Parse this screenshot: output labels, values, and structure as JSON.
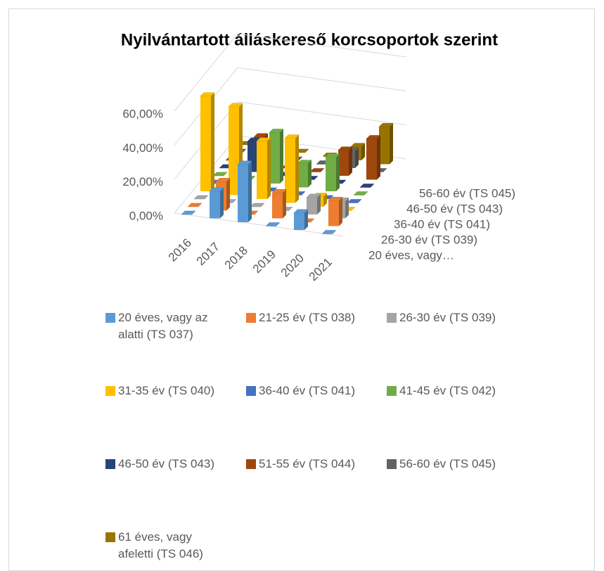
{
  "chart_data": {
    "type": "bar3d",
    "title": "Nyilvántartott álláskereső korcsoportok szerint",
    "categories": [
      "2016",
      "2017",
      "2018",
      "2019",
      "2020",
      "2021"
    ],
    "ylim": [
      0,
      60
    ],
    "yticks": [
      {
        "value": 0,
        "label": "0,00%"
      },
      {
        "value": 20,
        "label": "20,00%"
      },
      {
        "value": 40,
        "label": "40,00%"
      },
      {
        "value": 60,
        "label": "60,00%"
      }
    ],
    "grid": true,
    "depth_axis_labels": [
      "20 éves, vagy…",
      "26-30 év (TS 039)",
      "36-40 év (TS 041)",
      "46-50 év (TS 043)",
      "56-60 év (TS 045)"
    ],
    "legend": "bottom",
    "series": [
      {
        "name": "20 éves, vagy az alatti (TS 037)",
        "color": "#5b9bd5",
        "values": [
          0,
          16,
          34,
          0,
          10,
          0
        ]
      },
      {
        "name": "21-25 év (TS 038)",
        "color": "#ed7d31",
        "values": [
          0,
          17,
          0,
          15,
          0,
          15
        ]
      },
      {
        "name": "26-30 év (TS 039)",
        "color": "#a5a5a5",
        "values": [
          0,
          0,
          0,
          0,
          10,
          10
        ]
      },
      {
        "name": "31-35 év (TS 040)",
        "color": "#ffc000",
        "values": [
          56,
          52,
          34,
          38,
          6,
          0
        ]
      },
      {
        "name": "36-40 év (TS 041)",
        "color": "#4472c4",
        "values": [
          0,
          0,
          0,
          0,
          0,
          0
        ]
      },
      {
        "name": "41-45 év (TS 042)",
        "color": "#70ad47",
        "values": [
          0,
          0,
          30,
          14,
          20,
          0
        ]
      },
      {
        "name": "46-50 év (TS 043)",
        "color": "#264478",
        "values": [
          0,
          18,
          0,
          0,
          0,
          0
        ]
      },
      {
        "name": "51-55 év (TS 044)",
        "color": "#9e480e",
        "values": [
          0,
          16,
          0,
          0,
          15,
          24
        ]
      },
      {
        "name": "56-60 év (TS 045)",
        "color": "#636363",
        "values": [
          0,
          0,
          0,
          0,
          10,
          0
        ]
      },
      {
        "name": "61 éves, vagy afeletti (TS 046)",
        "color": "#997300",
        "values": [
          0,
          0,
          0,
          0,
          8,
          22
        ]
      }
    ]
  }
}
